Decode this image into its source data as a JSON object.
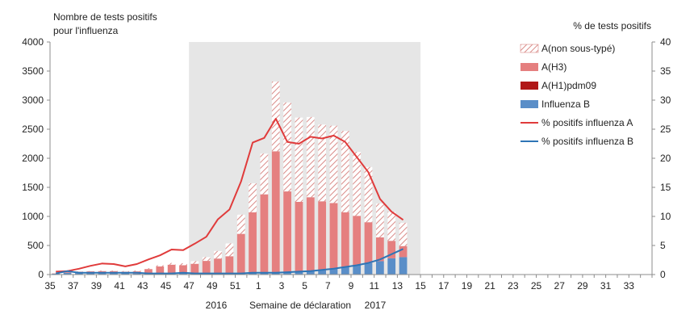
{
  "chart_data": {
    "type": "bar",
    "title_left": "Nombre de tests positifs",
    "title_left_2": "pour l'influenza",
    "title_right": "% de tests positifs",
    "xlabel": "Semaine de déclaration",
    "year_labels": [
      "2016",
      "2017"
    ],
    "y_left": {
      "range": [
        0,
        4000
      ],
      "ticks": [
        0,
        500,
        1000,
        1500,
        2000,
        2500,
        3000,
        3500,
        4000
      ]
    },
    "y_right": {
      "range": [
        0,
        40
      ],
      "ticks": [
        0,
        5,
        10,
        15,
        20,
        25,
        30,
        35,
        40
      ]
    },
    "weeks": [
      35,
      36,
      37,
      38,
      39,
      40,
      41,
      42,
      43,
      44,
      45,
      46,
      47,
      48,
      49,
      50,
      51,
      52,
      1,
      2,
      3,
      4,
      5,
      6,
      7,
      8,
      9,
      10,
      11,
      12,
      13,
      14,
      15,
      16,
      17,
      18,
      19,
      20,
      21,
      22,
      23,
      24,
      25,
      26,
      27,
      28,
      29,
      30,
      31,
      32,
      33,
      34
    ],
    "x_tick_labels": [
      "35",
      "37",
      "39",
      "41",
      "43",
      "45",
      "47",
      "49",
      "51",
      "1",
      "3",
      "5",
      "7",
      "9",
      "11",
      "13",
      "15",
      "17",
      "19",
      "21",
      "23",
      "25",
      "27",
      "29",
      "31",
      "33"
    ],
    "shaded_weeks": {
      "from": 47,
      "to": 14
    },
    "series": [
      {
        "name": "A(non sous-typé)",
        "kind": "bar",
        "color": "#e8a6a4",
        "pattern": "hatch",
        "values": [
          0,
          5,
          5,
          5,
          10,
          10,
          10,
          15,
          15,
          20,
          30,
          35,
          45,
          65,
          130,
          220,
          330,
          500,
          700,
          1200,
          1530,
          1450,
          1380,
          1320,
          1330,
          1400,
          1100,
          950,
          580,
          500,
          400,
          0,
          0,
          0,
          0,
          0,
          0,
          0,
          0,
          0,
          0,
          0,
          0,
          0,
          0,
          0,
          0,
          0,
          0,
          0,
          0,
          0
        ]
      },
      {
        "name": "A(H3)",
        "kind": "bar",
        "color": "#e57f7f",
        "values": [
          5,
          20,
          25,
          35,
          40,
          40,
          30,
          40,
          80,
          120,
          150,
          140,
          170,
          220,
          260,
          300,
          680,
          1040,
          1340,
          2080,
          1390,
          1200,
          1270,
          1190,
          1130,
          940,
          850,
          700,
          410,
          300,
          190,
          0,
          0,
          0,
          0,
          0,
          0,
          0,
          0,
          0,
          0,
          0,
          0,
          0,
          0,
          0,
          0,
          0,
          0,
          0,
          0,
          0
        ]
      },
      {
        "name": "A(H1)pdm09",
        "kind": "bar",
        "color": "#b01818",
        "values": [
          0,
          0,
          0,
          0,
          0,
          0,
          0,
          0,
          0,
          0,
          0,
          0,
          0,
          0,
          0,
          0,
          0,
          0,
          0,
          0,
          0,
          0,
          0,
          0,
          0,
          0,
          0,
          0,
          0,
          0,
          0,
          0,
          0,
          0,
          0,
          0,
          0,
          0,
          0,
          0,
          0,
          0,
          0,
          0,
          0,
          0,
          0,
          0,
          0,
          0,
          0,
          0
        ]
      },
      {
        "name": "Influenza B",
        "kind": "bar",
        "color": "#5a8ec8",
        "values": [
          15,
          30,
          25,
          20,
          20,
          20,
          20,
          15,
          15,
          20,
          20,
          20,
          15,
          15,
          15,
          15,
          20,
          30,
          40,
          40,
          40,
          50,
          60,
          70,
          100,
          130,
          160,
          200,
          230,
          280,
          300,
          0,
          0,
          0,
          0,
          0,
          0,
          0,
          0,
          0,
          0,
          0,
          0,
          0,
          0,
          0,
          0,
          0,
          0,
          0,
          0,
          0
        ]
      },
      {
        "name": "% positifs influenza A",
        "kind": "line",
        "axis": "right",
        "color": "#e03b3b",
        "values": [
          0.5,
          0.6,
          1.0,
          1.5,
          1.9,
          1.8,
          1.4,
          1.8,
          2.6,
          3.3,
          4.3,
          4.2,
          5.3,
          6.5,
          9.5,
          11.2,
          16,
          22.7,
          23.5,
          26.8,
          22.8,
          22.5,
          23.7,
          23.4,
          23.9,
          22.8,
          20.2,
          17.6,
          13.0,
          10.8,
          9.4,
          null,
          null,
          null,
          null,
          null,
          null,
          null,
          null,
          null,
          null,
          null,
          null,
          null,
          null,
          null,
          null,
          null,
          null,
          null,
          null,
          null
        ]
      },
      {
        "name": "% positifs influenza B",
        "kind": "line",
        "axis": "right",
        "color": "#2e75b6",
        "values": [
          0.2,
          0.6,
          0.3,
          0.3,
          0.3,
          0.3,
          0.3,
          0.3,
          0.2,
          0.2,
          0.2,
          0.3,
          0.2,
          0.2,
          0.2,
          0.2,
          0.2,
          0.3,
          0.3,
          0.3,
          0.4,
          0.5,
          0.6,
          0.8,
          1.0,
          1.3,
          1.6,
          2.0,
          2.6,
          3.5,
          4.4,
          null,
          null,
          null,
          null,
          null,
          null,
          null,
          null,
          null,
          null,
          null,
          null,
          null,
          null,
          null,
          null,
          null,
          null,
          null,
          null,
          null
        ]
      }
    ],
    "legend_position": "top-right",
    "colors": {
      "shade": "#e6e6e6",
      "axis": "#8c8c8c"
    }
  }
}
